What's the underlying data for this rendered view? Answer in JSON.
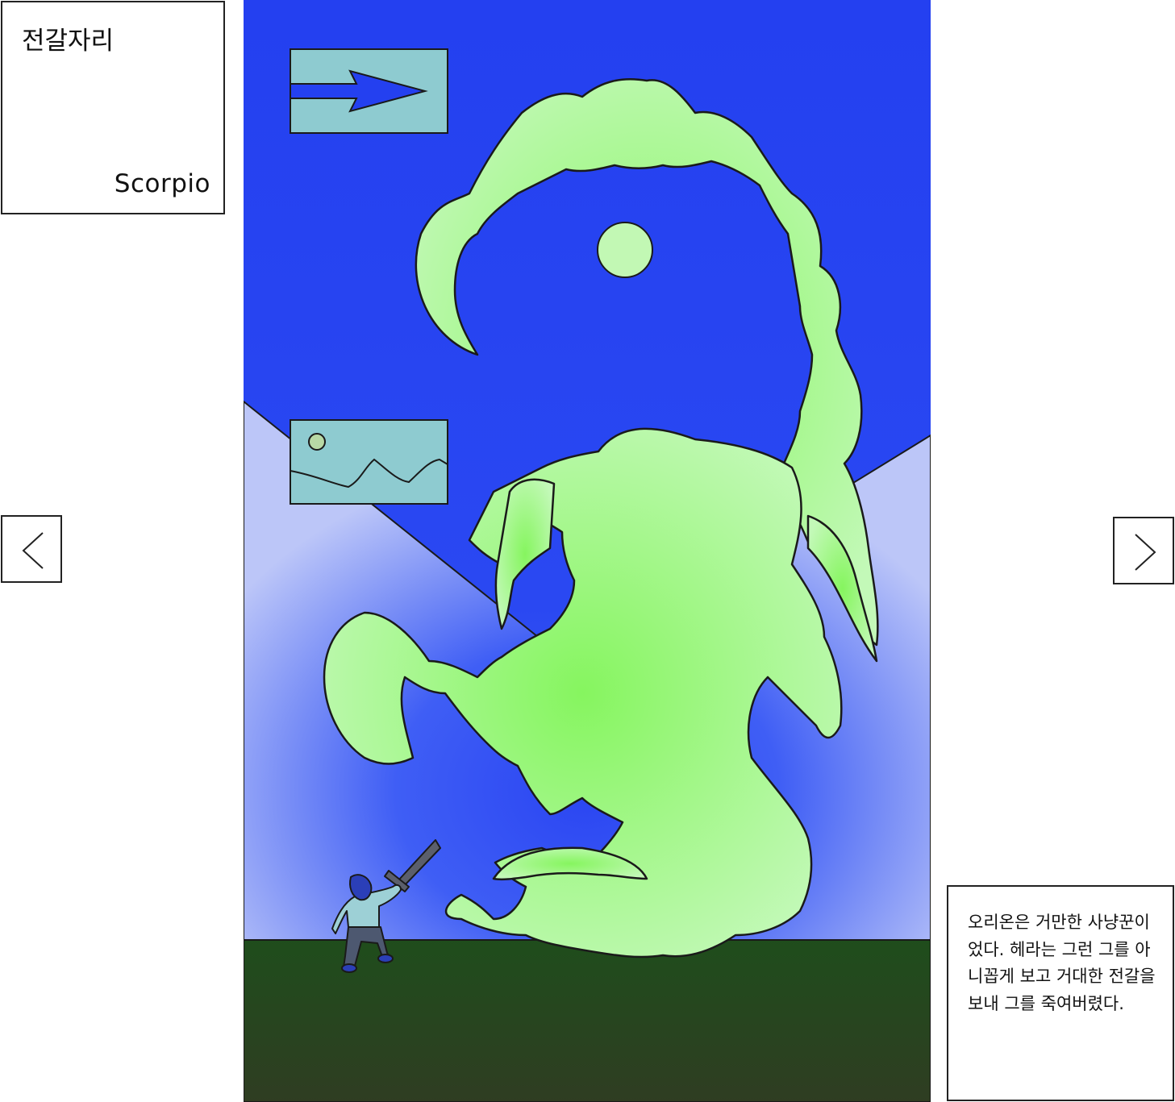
{
  "title": {
    "korean": "전갈자리",
    "english": "Scorpio"
  },
  "navigation": {
    "prev_icon": "chevron-left-icon",
    "next_icon": "chevron-right-icon"
  },
  "caption": {
    "text": "오리온은 거만한 사냥꾼이었다. 헤라는 그런 그를 아니꼽게 보고 거대한 전갈을 보내 그를 죽여버렸다."
  },
  "colors": {
    "sky_top": "#2341f0",
    "sky_bottom": "#5a7af7",
    "wall": "#b7c3f7",
    "ground": "#214a1e",
    "scorpion": "#8cf765",
    "scorpion_light": "#c2f8b8",
    "panel": "#8ecbd0",
    "outline": "#1a1a1a"
  }
}
